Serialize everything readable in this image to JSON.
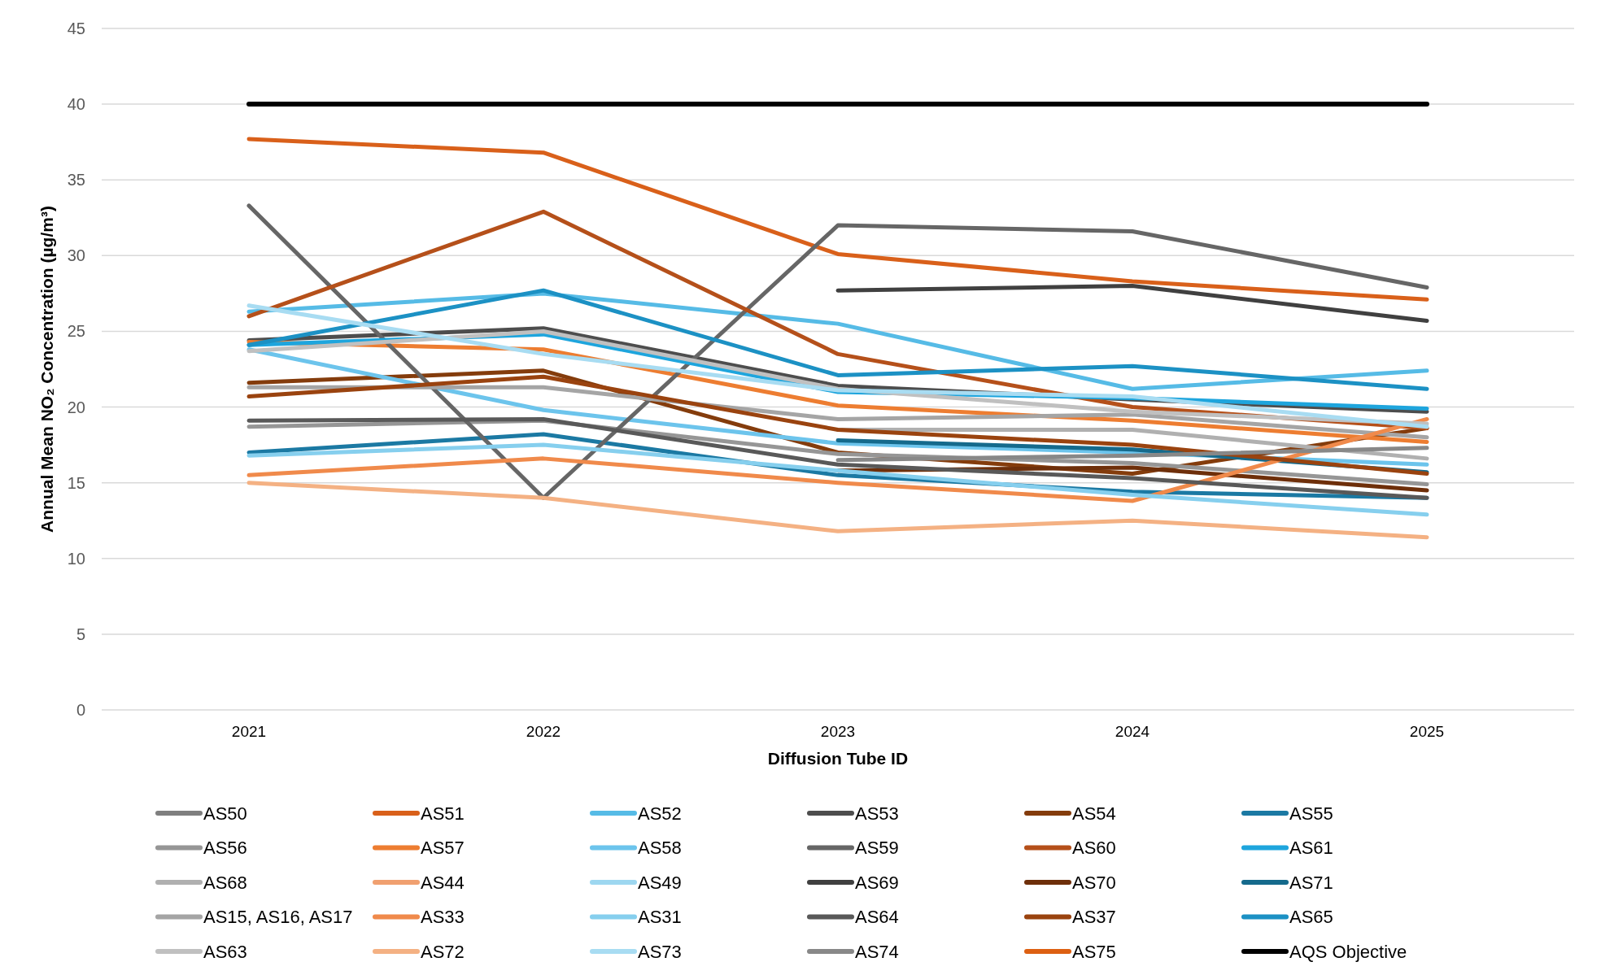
{
  "chart_data": {
    "type": "line",
    "xlabel": "Diffusion Tube ID",
    "ylabel": "Annual Mean NO₂ Concentration (µg/m³)",
    "categories": [
      "2021",
      "2022",
      "2023",
      "2024",
      "2025"
    ],
    "ylim": [
      0,
      45
    ],
    "yticks": [
      0,
      5,
      10,
      15,
      20,
      25,
      30,
      35,
      40,
      45
    ],
    "grid": "y",
    "legend": "bottom",
    "marker": "none",
    "line_style": "solid",
    "series": [
      {
        "name": "AS50",
        "color": "#7f7f7f",
        "values": [
          null,
          null,
          null,
          null,
          null
        ]
      },
      {
        "name": "AS51",
        "color": "#d9601a",
        "values": [
          37.7,
          36.8,
          30.1,
          28.3,
          27.1
        ]
      },
      {
        "name": "AS52",
        "color": "#56bbe6",
        "values": [
          26.3,
          27.5,
          25.5,
          21.2,
          22.4
        ]
      },
      {
        "name": "AS53",
        "color": "#4d4d4d",
        "values": [
          24.4,
          25.2,
          21.4,
          20.5,
          19.7
        ]
      },
      {
        "name": "AS54",
        "color": "#843c0c",
        "values": [
          21.6,
          22.4,
          17.0,
          15.6,
          18.6
        ]
      },
      {
        "name": "AS55",
        "color": "#1b79a3",
        "values": [
          17.0,
          18.2,
          15.5,
          14.4,
          14.0
        ]
      },
      {
        "name": "AS56",
        "color": "#969696",
        "values": [
          18.7,
          19.1,
          16.9,
          16.3,
          14.9
        ]
      },
      {
        "name": "AS57",
        "color": "#ed7d31",
        "values": [
          24.3,
          23.8,
          20.1,
          19.1,
          17.7
        ]
      },
      {
        "name": "AS58",
        "color": "#6cc4ec",
        "values": [
          23.8,
          19.8,
          17.6,
          17.0,
          16.2
        ]
      },
      {
        "name": "AS59",
        "color": "#666666",
        "values": [
          33.3,
          14.0,
          32.0,
          31.6,
          27.9
        ]
      },
      {
        "name": "AS60",
        "color": "#b5501a",
        "values": [
          26.0,
          32.9,
          23.5,
          20.0,
          18.6
        ]
      },
      {
        "name": "AS61",
        "color": "#1ea5dd",
        "values": [
          24.1,
          24.8,
          21.0,
          20.6,
          19.9
        ]
      },
      {
        "name": "AS68",
        "color": "#b0b0b0",
        "values": [
          null,
          null,
          18.5,
          18.5,
          16.6
        ]
      },
      {
        "name": "AS44",
        "color": "#f0a070",
        "values": [
          null,
          null,
          null,
          null,
          null
        ]
      },
      {
        "name": "AS49",
        "color": "#9dd7f0",
        "values": [
          null,
          null,
          null,
          null,
          null
        ]
      },
      {
        "name": "AS69",
        "color": "#404040",
        "values": [
          null,
          null,
          27.7,
          28.0,
          25.7
        ]
      },
      {
        "name": "AS70",
        "color": "#6e2f0a",
        "values": [
          null,
          null,
          15.8,
          16.0,
          14.5
        ]
      },
      {
        "name": "AS71",
        "color": "#156a8c",
        "values": [
          null,
          null,
          17.8,
          17.2,
          15.7
        ]
      },
      {
        "name": "AS15, AS16, AS17",
        "color": "#a5a5a5",
        "values": [
          21.3,
          21.3,
          19.2,
          19.5,
          18.0
        ]
      },
      {
        "name": "AS33",
        "color": "#f08a4b",
        "values": [
          15.5,
          16.6,
          15.0,
          13.8,
          19.2
        ]
      },
      {
        "name": "AS31",
        "color": "#86cfee",
        "values": [
          16.8,
          17.5,
          15.8,
          14.2,
          12.9
        ]
      },
      {
        "name": "AS64",
        "color": "#595959",
        "values": [
          19.1,
          19.2,
          16.2,
          15.3,
          14.0
        ]
      },
      {
        "name": "AS37",
        "color": "#9a430f",
        "values": [
          20.7,
          22.0,
          18.5,
          17.5,
          15.6
        ]
      },
      {
        "name": "AS65",
        "color": "#1c91c4",
        "values": [
          24.1,
          27.7,
          22.1,
          22.7,
          21.2
        ]
      },
      {
        "name": "AS63",
        "color": "#c0c0c0",
        "values": [
          23.7,
          25.0,
          21.2,
          19.7,
          18.9
        ]
      },
      {
        "name": "AS72",
        "color": "#f4b183",
        "values": [
          15.0,
          14.0,
          11.8,
          12.5,
          11.4
        ]
      },
      {
        "name": "AS73",
        "color": "#a8dcf2",
        "values": [
          26.7,
          23.5,
          21.1,
          20.7,
          18.7
        ]
      },
      {
        "name": "AS74",
        "color": "#888888",
        "values": [
          null,
          null,
          16.5,
          16.8,
          17.3
        ]
      },
      {
        "name": "AS75",
        "color": "#dd6012",
        "values": [
          null,
          null,
          null,
          null,
          null
        ]
      },
      {
        "name": "AQS Objective",
        "color": "#000000",
        "values": [
          40,
          40,
          40,
          40,
          40
        ]
      }
    ]
  }
}
